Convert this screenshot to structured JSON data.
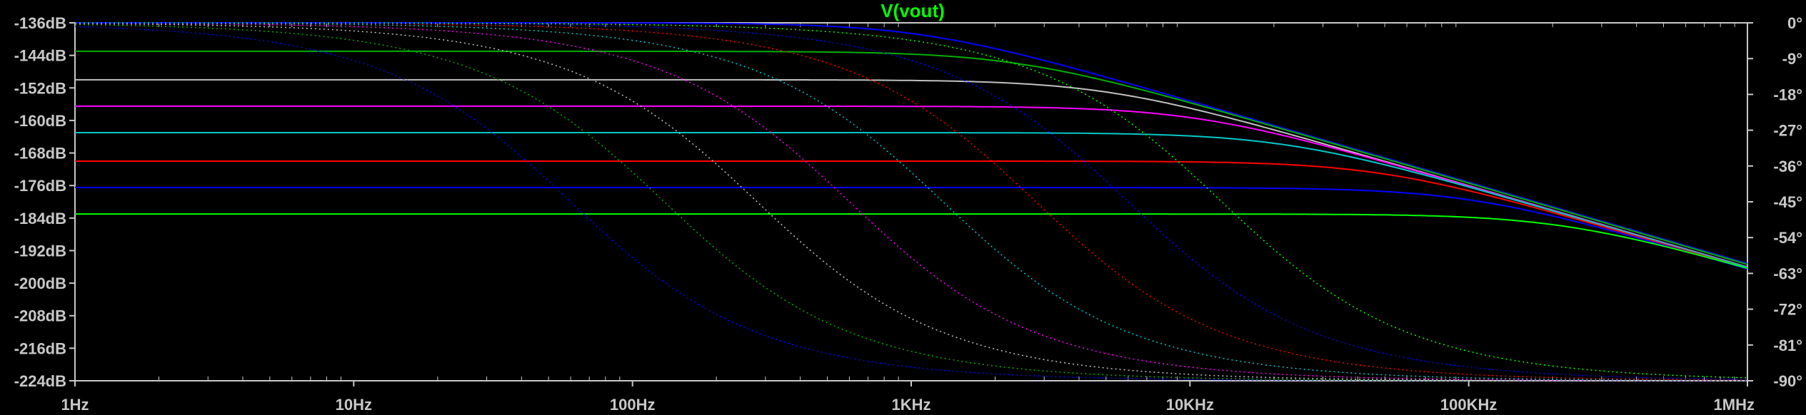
{
  "chart_data": {
    "type": "line",
    "title": "V(vout)",
    "title_color": "#00ff00",
    "background_color": "#000000",
    "axis_color": "#c8c8c8",
    "x_scale": "log",
    "xlim": [
      1,
      1000000
    ],
    "x_ticks": [
      {
        "value": 1,
        "label": "1Hz"
      },
      {
        "value": 10,
        "label": "10Hz"
      },
      {
        "value": 100,
        "label": "100Hz"
      },
      {
        "value": 1000,
        "label": "1KHz"
      },
      {
        "value": 10000,
        "label": "10KHz"
      },
      {
        "value": 100000,
        "label": "100KHz"
      },
      {
        "value": 1000000,
        "label": "1MHz"
      }
    ],
    "y_left_lim": [
      -224,
      -136
    ],
    "y_left_ticks": [
      {
        "value": -136,
        "label": "-136dB"
      },
      {
        "value": -144,
        "label": "-144dB"
      },
      {
        "value": -152,
        "label": "-152dB"
      },
      {
        "value": -160,
        "label": "-160dB"
      },
      {
        "value": -168,
        "label": "-168dB"
      },
      {
        "value": -176,
        "label": "-176dB"
      },
      {
        "value": -184,
        "label": "-184dB"
      },
      {
        "value": -192,
        "label": "-192dB"
      },
      {
        "value": -200,
        "label": "-200dB"
      },
      {
        "value": -208,
        "label": "-208dB"
      },
      {
        "value": -216,
        "label": "-216dB"
      },
      {
        "value": -224,
        "label": "-224dB"
      }
    ],
    "y_right_lim": [
      -90,
      0
    ],
    "y_right_ticks": [
      {
        "value": 0,
        "label": "0°"
      },
      {
        "value": -9,
        "label": "-9°"
      },
      {
        "value": -18,
        "label": "-18°"
      },
      {
        "value": -27,
        "label": "-27°"
      },
      {
        "value": -36,
        "label": "-36°"
      },
      {
        "value": -45,
        "label": "-45°"
      },
      {
        "value": -54,
        "label": "-54°"
      },
      {
        "value": -63,
        "label": "-63°"
      },
      {
        "value": -72,
        "label": "-72°"
      },
      {
        "value": -81,
        "label": "-81°"
      },
      {
        "value": -90,
        "label": "-90°"
      }
    ],
    "grid": false,
    "magnitude_traces": [
      {
        "color": "#0000ff",
        "dc_gain_db": -136,
        "corner_hz": 1100
      },
      {
        "color": "#00b000",
        "dc_gain_db": -143,
        "corner_hz": 2400
      },
      {
        "color": "#c0c0c0",
        "dc_gain_db": -150,
        "corner_hz": 5000
      },
      {
        "color": "#ff00ff",
        "dc_gain_db": -156.5,
        "corner_hz": 10500
      },
      {
        "color": "#00c8c8",
        "dc_gain_db": -163,
        "corner_hz": 22000
      },
      {
        "color": "#ff0000",
        "dc_gain_db": -170,
        "corner_hz": 48000
      },
      {
        "color": "#0000ff",
        "dc_gain_db": -176.5,
        "corner_hz": 100000
      },
      {
        "color": "#00ff00",
        "dc_gain_db": -183,
        "corner_hz": 220000
      }
    ],
    "phase_traces": [
      {
        "color": "#0000ff",
        "corner_hz": 60
      },
      {
        "color": "#00b000",
        "corner_hz": 130
      },
      {
        "color": "#c0c0c0",
        "corner_hz": 280
      },
      {
        "color": "#ff00ff",
        "corner_hz": 600
      },
      {
        "color": "#00c8c8",
        "corner_hz": 1300
      },
      {
        "color": "#ff0000",
        "corner_hz": 2800
      },
      {
        "color": "#0000ff",
        "corner_hz": 6000
      },
      {
        "color": "#00ff00",
        "corner_hz": 13000
      }
    ]
  }
}
